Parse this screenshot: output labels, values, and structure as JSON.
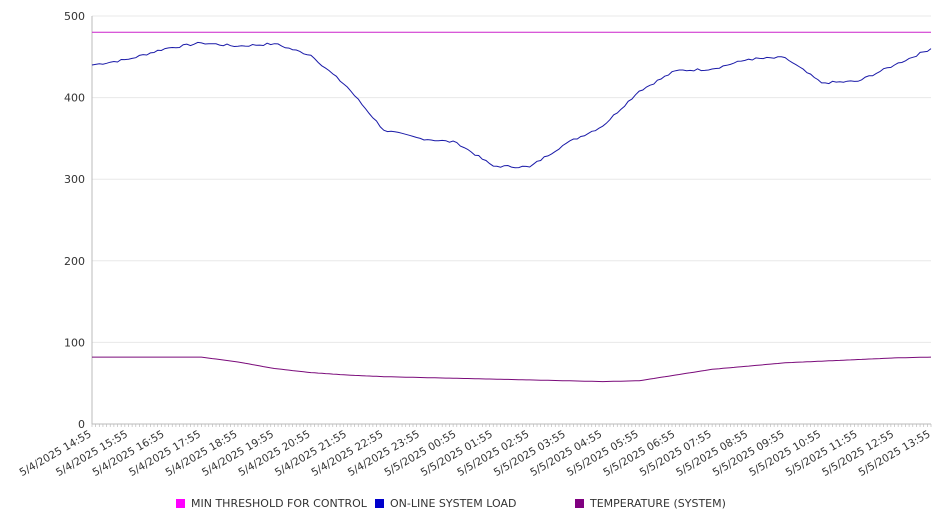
{
  "chart_data": {
    "type": "line",
    "ylim": [
      0,
      500
    ],
    "yticks": [
      "0",
      "100",
      "200",
      "300",
      "400",
      "500"
    ],
    "grid": true,
    "legend_position": "bottom",
    "x": [
      "5/4/2025 14:55",
      "5/4/2025 15:55",
      "5/4/2025 16:55",
      "5/4/2025 17:55",
      "5/4/2025 18:55",
      "5/4/2025 19:55",
      "5/4/2025 20:55",
      "5/4/2025 21:55",
      "5/4/2025 22:55",
      "5/4/2025 23:55",
      "5/5/2025 00:55",
      "5/5/2025 01:55",
      "5/5/2025 02:55",
      "5/5/2025 03:55",
      "5/5/2025 04:55",
      "5/5/2025 05:55",
      "5/5/2025 06:55",
      "5/5/2025 07:55",
      "5/5/2025 08:55",
      "5/5/2025 09:55",
      "5/5/2025 10:55",
      "5/5/2025 11:55",
      "5/5/2025 12:55",
      "5/5/2025 13:55"
    ],
    "series": [
      {
        "name": "MIN THRESHOLD FOR CONTROL",
        "color": "#cc22cc",
        "values": [
          480,
          480,
          480,
          480,
          480,
          480,
          480,
          480,
          480,
          480,
          480,
          480,
          480,
          480,
          480,
          480,
          480,
          480,
          480,
          480,
          480,
          480,
          480,
          480
        ]
      },
      {
        "name": "ON-LINE SYSTEM LOAD",
        "color": "#1a1aa8",
        "values": [
          440,
          447,
          460,
          467,
          463,
          466,
          452,
          413,
          360,
          350,
          345,
          316,
          315,
          344,
          365,
          408,
          433,
          435,
          447,
          449,
          418,
          420,
          440,
          460
        ]
      },
      {
        "name": "TEMPERATURE (SYSTEM)",
        "color": "#7a0a7a",
        "values": [
          82,
          82,
          82,
          82,
          76,
          68,
          63,
          60,
          58,
          57,
          56,
          55,
          54,
          53,
          52,
          53,
          60,
          67,
          71,
          75,
          77,
          79,
          81,
          82
        ]
      }
    ],
    "legend": [
      {
        "label": "MIN THRESHOLD FOR CONTROL",
        "color": "#ff00ff"
      },
      {
        "label": "ON-LINE SYSTEM LOAD",
        "color": "#0000cc"
      },
      {
        "label": "TEMPERATURE (SYSTEM)",
        "color": "#800080"
      }
    ]
  }
}
